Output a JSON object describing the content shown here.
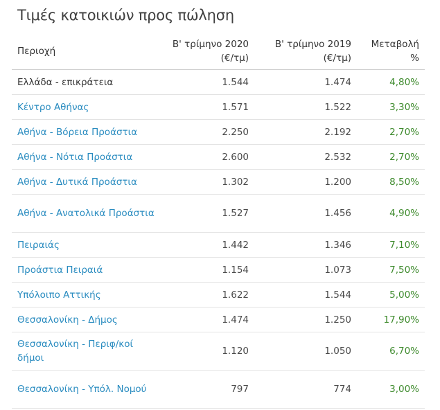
{
  "title": "Τιμές κατοικιών προς πώληση",
  "headers": {
    "region": "Περιοχή",
    "q2_2020": "Β' τρίμηνο 2020 (€/τμ)",
    "q2_2019": "Β' τρίμηνο 2019 (€/τμ)",
    "change": "Μεταβολή %"
  },
  "rows": [
    {
      "region": "Ελλάδα - επικράτεια",
      "q2_2020": "1.544",
      "q2_2019": "1.474",
      "change": "4,80%",
      "link": false
    },
    {
      "region": "Κέντρο Αθήνας",
      "q2_2020": "1.571",
      "q2_2019": "1.522",
      "change": "3,30%",
      "link": true
    },
    {
      "region": "Αθήνα - Βόρεια Προάστια",
      "q2_2020": "2.250",
      "q2_2019": "2.192",
      "change": "2,70%",
      "link": true
    },
    {
      "region": "Αθήνα - Νότια Προάστια",
      "q2_2020": "2.600",
      "q2_2019": "2.532",
      "change": "2,70%",
      "link": true
    },
    {
      "region": "Αθήνα - Δυτικά Προάστια",
      "q2_2020": "1.302",
      "q2_2019": "1.200",
      "change": "8,50%",
      "link": true
    },
    {
      "region": "Αθήνα - Ανατολικά Προάστια",
      "q2_2020": "1.527",
      "q2_2019": "1.456",
      "change": "4,90%",
      "link": true
    },
    {
      "region": "Πειραιάς",
      "q2_2020": "1.442",
      "q2_2019": "1.346",
      "change": "7,10%",
      "link": true
    },
    {
      "region": "Προάστια Πειραιά",
      "q2_2020": "1.154",
      "q2_2019": "1.073",
      "change": "7,50%",
      "link": true
    },
    {
      "region": "Υπόλοιπο Αττικής",
      "q2_2020": "1.622",
      "q2_2019": "1.544",
      "change": "5,00%",
      "link": true
    },
    {
      "region": "Θεσσαλονίκη - Δήμος",
      "q2_2020": "1.474",
      "q2_2019": "1.250",
      "change": "17,90%",
      "link": true
    },
    {
      "region": "Θεσσαλονίκη - Περιφ/κοί δήμοι",
      "q2_2020": "1.120",
      "q2_2019": "1.050",
      "change": "6,70%",
      "link": true
    },
    {
      "region": "Θεσσαλονίκη - Υπόλ. Νομού",
      "q2_2020": "797",
      "q2_2019": "774",
      "change": "3,00%",
      "link": true
    }
  ]
}
